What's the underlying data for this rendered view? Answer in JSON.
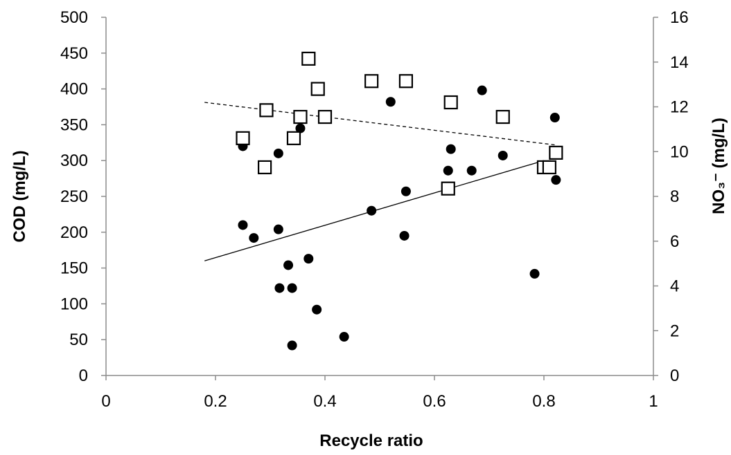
{
  "chart_data": {
    "type": "scatter",
    "xlabel": "Recycle ratio",
    "ylabel_left": "COD (mg/L)",
    "ylabel_right": "NO₃⁻ (mg/L)",
    "xlim": [
      0,
      1
    ],
    "ylim_left": [
      0,
      500
    ],
    "ylim_right": [
      0,
      16
    ],
    "x_ticks": [
      "0",
      "0.2",
      "0.4",
      "0.6",
      "0.8",
      "1"
    ],
    "y_left_ticks": [
      "0",
      "50",
      "100",
      "150",
      "200",
      "250",
      "300",
      "350",
      "400",
      "450",
      "500"
    ],
    "y_right_ticks": [
      "0",
      "2",
      "4",
      "6",
      "8",
      "10",
      "12",
      "14",
      "16"
    ],
    "grid": false,
    "series": [
      {
        "marker": "filled-circle",
        "axis": "left",
        "points": [
          [
            0.25,
            320
          ],
          [
            0.25,
            210
          ],
          [
            0.27,
            192
          ],
          [
            0.315,
            310
          ],
          [
            0.315,
            204
          ],
          [
            0.317,
            122
          ],
          [
            0.333,
            154
          ],
          [
            0.34,
            42
          ],
          [
            0.34,
            122
          ],
          [
            0.355,
            345
          ],
          [
            0.37,
            163
          ],
          [
            0.385,
            92
          ],
          [
            0.435,
            54
          ],
          [
            0.485,
            230
          ],
          [
            0.52,
            382
          ],
          [
            0.545,
            195
          ],
          [
            0.548,
            257
          ],
          [
            0.625,
            286
          ],
          [
            0.63,
            316
          ],
          [
            0.668,
            286
          ],
          [
            0.687,
            398
          ],
          [
            0.725,
            307
          ],
          [
            0.783,
            142
          ],
          [
            0.82,
            360
          ],
          [
            0.822,
            273
          ]
        ]
      },
      {
        "marker": "open-square",
        "axis": "right",
        "points": [
          [
            0.25,
            10.6
          ],
          [
            0.29,
            9.3
          ],
          [
            0.293,
            11.85
          ],
          [
            0.343,
            10.6
          ],
          [
            0.355,
            11.55
          ],
          [
            0.37,
            14.15
          ],
          [
            0.387,
            12.8
          ],
          [
            0.4,
            11.55
          ],
          [
            0.485,
            13.15
          ],
          [
            0.548,
            13.15
          ],
          [
            0.625,
            8.35
          ],
          [
            0.63,
            12.2
          ],
          [
            0.725,
            11.55
          ],
          [
            0.8,
            9.3
          ],
          [
            0.81,
            9.3
          ],
          [
            0.822,
            9.95
          ]
        ]
      }
    ],
    "trendlines": [
      {
        "axis": "left",
        "style": "solid",
        "from": [
          0.18,
          160
        ],
        "to": [
          0.8,
          300
        ]
      },
      {
        "axis": "right",
        "style": "dashed",
        "from": [
          0.18,
          12.2
        ],
        "to": [
          0.82,
          10.3
        ]
      }
    ]
  }
}
